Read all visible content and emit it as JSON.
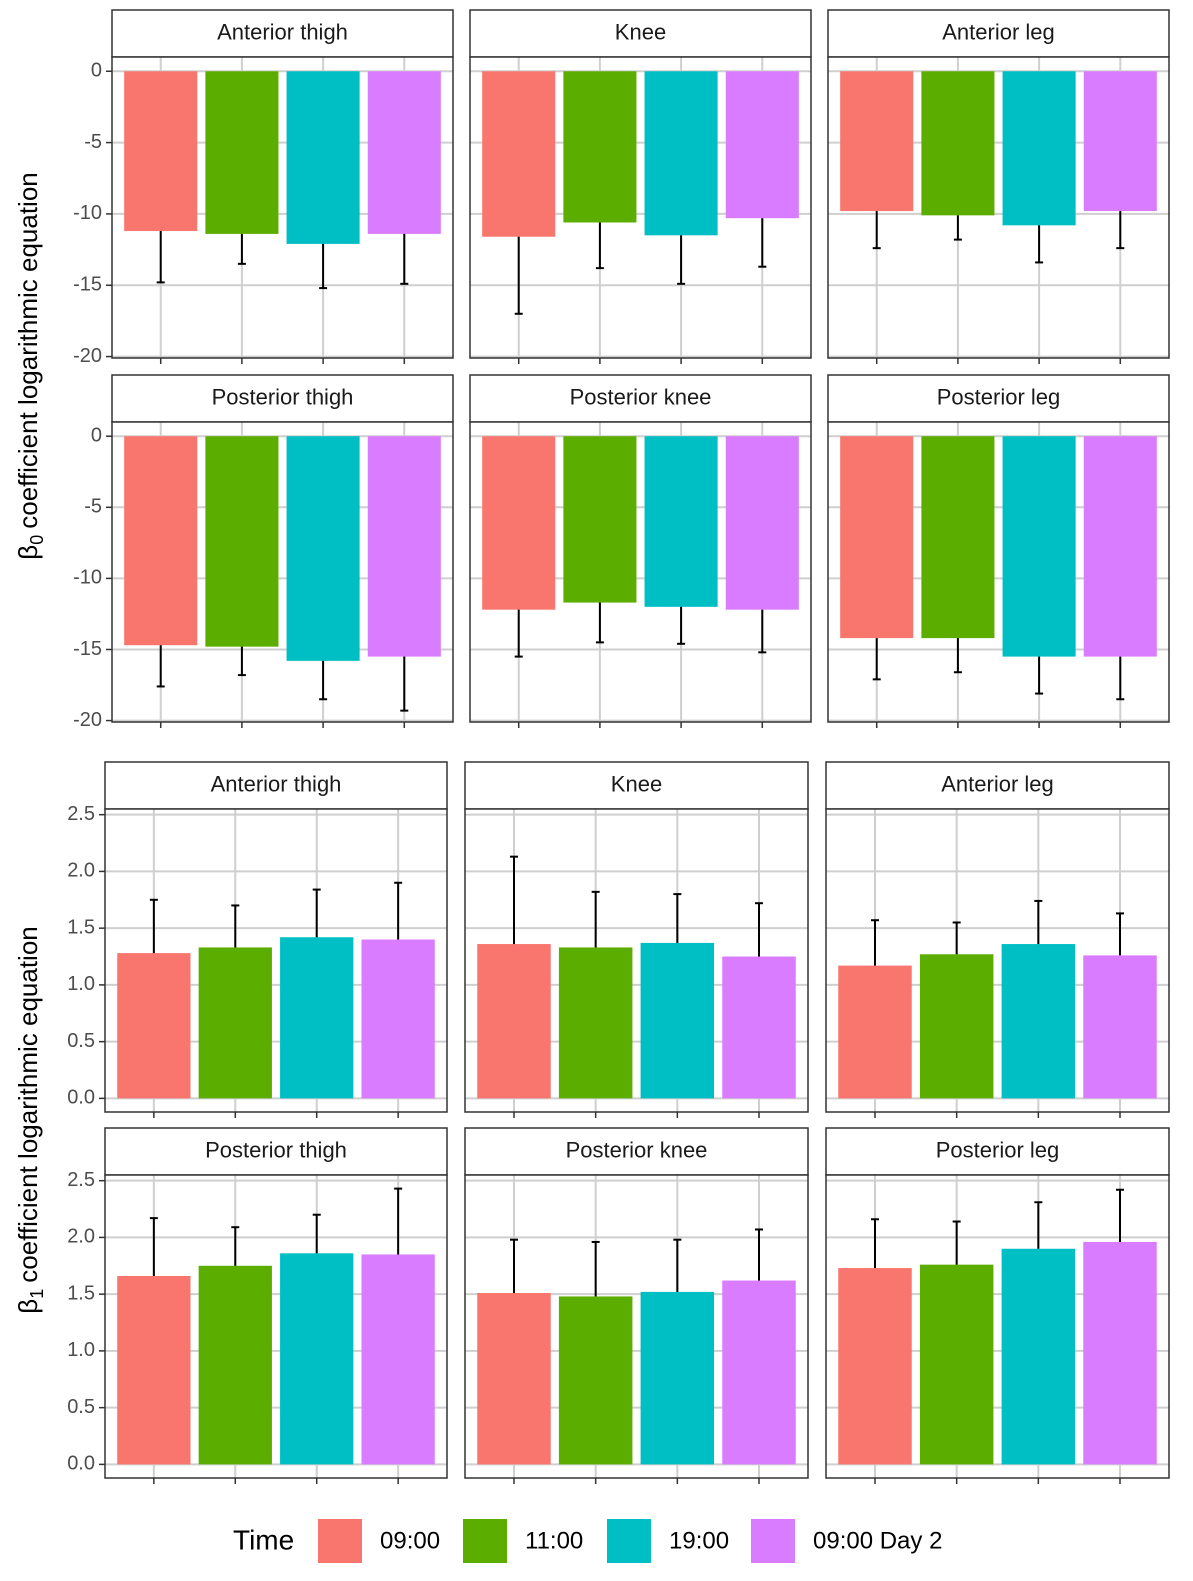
{
  "legend": {
    "title": "Time",
    "series": [
      {
        "name": "09:00",
        "color": "#F8766D"
      },
      {
        "name": "11:00",
        "color": "#5BAE00"
      },
      {
        "name": "19:00",
        "color": "#00BFC4"
      },
      {
        "name": "09:00 Day 2",
        "color": "#DA7CFF"
      }
    ]
  },
  "chart_data": [
    {
      "type": "bar",
      "ylabel": {
        "symbol": "β",
        "subscript": "0",
        "text": "coefficient logarithmic equation"
      },
      "ylim": [
        -20.1,
        1.0
      ],
      "yticks": [
        0,
        -5,
        -10,
        -15,
        -20
      ],
      "grid": true,
      "facets": [
        {
          "title": "Anterior thigh",
          "values": [
            -11.2,
            -11.4,
            -12.1,
            -11.4
          ],
          "errors": [
            3.6,
            2.1,
            3.1,
            3.5
          ]
        },
        {
          "title": "Knee",
          "values": [
            -11.6,
            -10.6,
            -11.5,
            -10.3
          ],
          "errors": [
            5.4,
            3.2,
            3.4,
            3.4
          ]
        },
        {
          "title": "Anterior leg",
          "values": [
            -9.8,
            -10.1,
            -10.8,
            -9.8
          ],
          "errors": [
            2.6,
            1.7,
            2.6,
            2.6
          ]
        },
        {
          "title": "Posterior thigh",
          "values": [
            -14.7,
            -14.8,
            -15.8,
            -15.5
          ],
          "errors": [
            2.9,
            2.0,
            2.7,
            3.8
          ]
        },
        {
          "title": "Posterior knee",
          "values": [
            -12.2,
            -11.7,
            -12.0,
            -12.2
          ],
          "errors": [
            3.3,
            2.8,
            2.6,
            3.0
          ]
        },
        {
          "title": "Posterior leg",
          "values": [
            -14.2,
            -14.2,
            -15.5,
            -15.5
          ],
          "errors": [
            2.9,
            2.4,
            2.6,
            3.0
          ]
        }
      ]
    },
    {
      "type": "bar",
      "ylabel": {
        "symbol": "β",
        "subscript": "1",
        "text": "coefficient logarithmic equation"
      },
      "ylim": [
        -0.12,
        2.55
      ],
      "yticks": [
        {
          "value": 0,
          "label": "0.0"
        },
        0.5,
        {
          "value": 1,
          "label": "1.0"
        },
        1.5,
        {
          "value": 2,
          "label": "2.0"
        },
        2.5
      ],
      "grid": true,
      "facets": [
        {
          "title": "Anterior thigh",
          "values": [
            1.28,
            1.33,
            1.42,
            1.4
          ],
          "errors": [
            0.47,
            0.37,
            0.42,
            0.5
          ]
        },
        {
          "title": "Knee",
          "values": [
            1.36,
            1.33,
            1.37,
            1.25
          ],
          "errors": [
            0.77,
            0.49,
            0.43,
            0.47
          ]
        },
        {
          "title": "Anterior leg",
          "values": [
            1.17,
            1.27,
            1.36,
            1.26
          ],
          "errors": [
            0.4,
            0.28,
            0.38,
            0.37
          ]
        },
        {
          "title": "Posterior thigh",
          "values": [
            1.66,
            1.75,
            1.86,
            1.85
          ],
          "errors": [
            0.51,
            0.34,
            0.34,
            0.58
          ]
        },
        {
          "title": "Posterior knee",
          "values": [
            1.51,
            1.48,
            1.52,
            1.62
          ],
          "errors": [
            0.47,
            0.48,
            0.46,
            0.45
          ]
        },
        {
          "title": "Posterior leg",
          "values": [
            1.73,
            1.76,
            1.9,
            1.96
          ],
          "errors": [
            0.43,
            0.38,
            0.41,
            0.46
          ]
        }
      ]
    }
  ]
}
